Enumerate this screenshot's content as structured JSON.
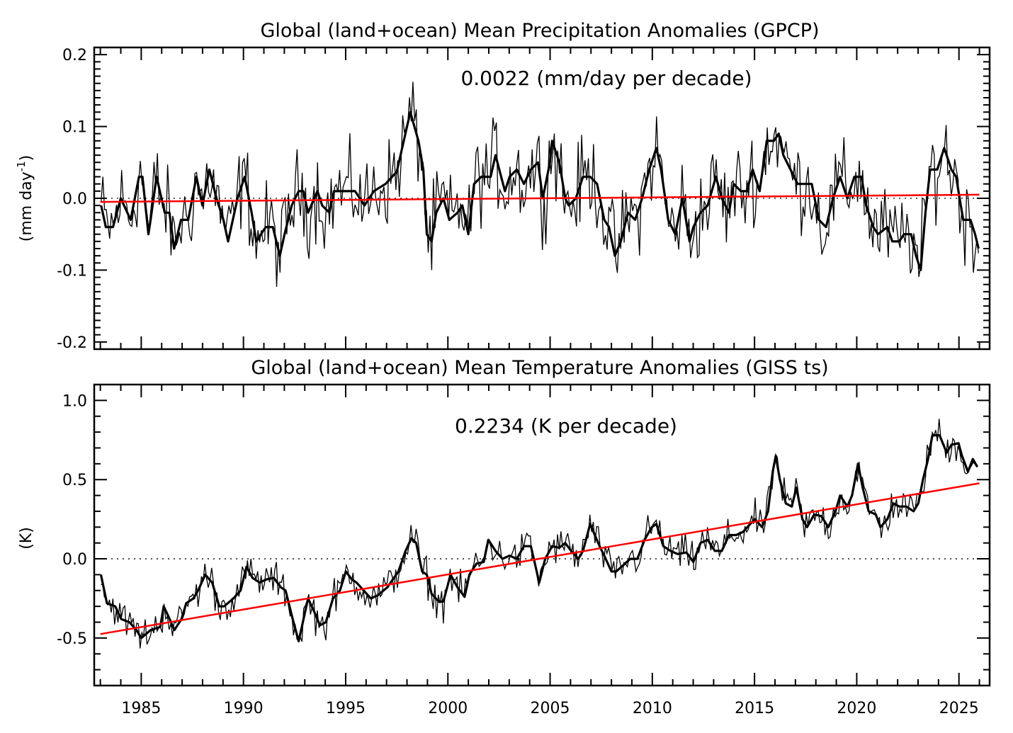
{
  "chart_data": [
    {
      "type": "line",
      "title": "Global (land+ocean) Mean Precipitation Anomalies (GPCP)",
      "annotation": "0.0022 (mm/day per decade)",
      "xlabel": "",
      "ylabel": "(mm day",
      "ylabel_sup": "-1",
      "ylabel_close": ")",
      "xlim": [
        1982.7,
        2026.5
      ],
      "ylim": [
        -0.21,
        0.21
      ],
      "yticks": [
        -0.2,
        -0.1,
        0.0,
        0.1,
        0.2
      ],
      "ytick_labels": [
        "-0.2",
        "-0.1",
        "0.0",
        "0.1",
        "0.2"
      ],
      "zero_line": "dotted",
      "colors": {
        "series": "#000000",
        "trend": "#ff0000"
      },
      "trend": {
        "slope_per_decade": 0.0022,
        "start": [
          1983.0,
          -0.005
        ],
        "end": [
          2026.0,
          0.005
        ]
      },
      "series": {
        "x": [
          1983.04,
          1983.27,
          1983.62,
          1984.0,
          1984.48,
          1984.89,
          1985.06,
          1985.35,
          1985.46,
          1985.75,
          1986.15,
          1986.38,
          1986.61,
          1986.95,
          1987.3,
          1987.7,
          1987.99,
          1988.33,
          1988.68,
          1989.02,
          1989.25,
          1989.71,
          1990.06,
          1990.4,
          1990.63,
          1991.09,
          1991.44,
          1991.78,
          1992.01,
          1992.36,
          1992.7,
          1992.93,
          1993.16,
          1993.62,
          1993.85,
          1994.2,
          1994.43,
          1995.0,
          1995.46,
          1995.92,
          1996.38,
          1996.95,
          1997.5,
          1998.16,
          1998.56,
          1998.8,
          1998.97,
          1999.2,
          1999.43,
          1999.78,
          2000.07,
          2000.47,
          2000.71,
          2001.0,
          2001.28,
          2001.63,
          2002.09,
          2002.33,
          2002.79,
          2003.02,
          2003.37,
          2003.72,
          2004.06,
          2004.41,
          2004.64,
          2004.99,
          2005.1,
          2005.45,
          2005.74,
          2005.91,
          2006.26,
          2006.61,
          2006.96,
          2007.3,
          2007.65,
          2007.88,
          2008.17,
          2008.46,
          2008.81,
          2009.16,
          2009.5,
          2009.85,
          2010.2,
          2010.43,
          2010.78,
          2011.12,
          2011.47,
          2011.82,
          2012.01,
          2012.36,
          2012.71,
          2013.11,
          2013.4,
          2013.75,
          2013.98,
          2014.33,
          2014.62,
          2014.91,
          2015.25,
          2015.6,
          2015.95,
          2016.18,
          2016.41,
          2016.76,
          2017.11,
          2017.45,
          2017.8,
          2018.15,
          2018.5,
          2018.84,
          2019.19,
          2019.54,
          2019.88,
          2020.23,
          2020.46,
          2020.81,
          2021.04,
          2021.5,
          2021.74,
          2022.08,
          2022.31,
          2022.66,
          2022.9,
          2023.13,
          2023.36,
          2023.59,
          2023.94,
          2024.28,
          2024.63,
          2024.86,
          2025.09,
          2025.21,
          2025.56,
          2025.79,
          2025.96
        ],
        "y": [
          -0.01,
          -0.04,
          -0.04,
          0.0,
          -0.03,
          0.03,
          0.03,
          -0.05,
          -0.03,
          0.03,
          -0.02,
          -0.02,
          -0.07,
          -0.03,
          -0.03,
          0.03,
          -0.01,
          0.04,
          0.0,
          -0.03,
          -0.06,
          0.0,
          0.03,
          -0.02,
          -0.06,
          -0.04,
          -0.04,
          -0.08,
          -0.05,
          -0.01,
          0.01,
          0.01,
          -0.02,
          0.01,
          -0.01,
          -0.02,
          0.01,
          0.01,
          0.01,
          -0.01,
          0.01,
          0.02,
          0.037,
          0.12,
          0.08,
          0.04,
          -0.05,
          -0.06,
          -0.02,
          0.0,
          -0.03,
          -0.02,
          -0.01,
          -0.05,
          0.02,
          0.03,
          0.03,
          0.06,
          0.01,
          0.03,
          0.04,
          0.02,
          0.04,
          0.05,
          0.0,
          0.05,
          0.08,
          0.05,
          0.0,
          -0.01,
          0.0,
          0.03,
          0.03,
          0.02,
          -0.03,
          -0.04,
          -0.08,
          -0.06,
          -0.02,
          -0.03,
          0.0,
          0.04,
          0.07,
          0.04,
          -0.03,
          -0.05,
          0.0,
          -0.06,
          -0.04,
          -0.02,
          -0.01,
          0.03,
          0.0,
          -0.02,
          0.02,
          0.01,
          0.01,
          0.04,
          0.01,
          0.08,
          0.08,
          0.09,
          0.06,
          0.04,
          0.02,
          0.02,
          0.02,
          -0.03,
          -0.04,
          0.0,
          0.03,
          0.0,
          0.03,
          0.03,
          -0.01,
          -0.04,
          -0.05,
          -0.04,
          -0.06,
          -0.06,
          -0.05,
          -0.05,
          -0.08,
          -0.1,
          -0.02,
          0.04,
          0.04,
          0.07,
          0.04,
          0.03,
          -0.01,
          -0.03,
          -0.03,
          -0.05,
          -0.07
        ]
      }
    },
    {
      "type": "line",
      "title": "Global (land+ocean) Mean Temperature Anomalies (GISS ts)",
      "annotation": "0.2234 (K per decade)",
      "xlabel": "",
      "ylabel": "(K)",
      "xlim": [
        1982.7,
        2026.5
      ],
      "ylim": [
        -0.8,
        1.1
      ],
      "yticks": [
        -0.5,
        0.0,
        0.5,
        1.0
      ],
      "ytick_labels": [
        "-0.5",
        "0.0",
        "0.5",
        "1.0"
      ],
      "xticks": [
        1985,
        1990,
        1995,
        2000,
        2005,
        2010,
        2015,
        2020,
        2025
      ],
      "xtick_labels": [
        "1985",
        "1990",
        "1995",
        "2000",
        "2005",
        "2010",
        "2015",
        "2020",
        "2025"
      ],
      "zero_line": "dotted",
      "colors": {
        "series": "#000000",
        "trend": "#ff0000"
      },
      "trend": {
        "slope_per_decade": 0.2234,
        "start": [
          1983.0,
          -0.475
        ],
        "end": [
          2026.0,
          0.477
        ]
      },
      "series": {
        "x": [
          1983.03,
          1983.32,
          1983.73,
          1984.02,
          1984.42,
          1984.77,
          1985.0,
          1985.46,
          1985.93,
          1986.1,
          1986.39,
          1986.62,
          1986.97,
          1987.2,
          1987.55,
          1987.78,
          1988.13,
          1988.47,
          1988.82,
          1989.05,
          1989.51,
          1989.86,
          1990.15,
          1990.44,
          1990.79,
          1991.13,
          1991.48,
          1991.83,
          1992.06,
          1992.41,
          1992.7,
          1992.99,
          1993.16,
          1993.45,
          1993.74,
          1994.03,
          1994.38,
          1994.72,
          1995.01,
          1995.3,
          1995.53,
          1995.88,
          1996.23,
          1996.57,
          1997.04,
          1997.58,
          1997.93,
          1998.22,
          1998.45,
          1998.74,
          1998.97,
          1999.2,
          1999.55,
          1999.78,
          2000.13,
          2000.47,
          2000.82,
          2001.05,
          2001.4,
          2001.75,
          2001.98,
          2002.33,
          2002.67,
          2003.02,
          2003.37,
          2003.72,
          2004.06,
          2004.29,
          2004.47,
          2004.76,
          2005.1,
          2005.45,
          2005.74,
          2006.03,
          2006.38,
          2006.61,
          2006.96,
          2007.19,
          2007.42,
          2007.65,
          2008.0,
          2008.23,
          2008.58,
          2008.92,
          2009.27,
          2009.62,
          2009.97,
          2010.2,
          2010.54,
          2010.89,
          2011.24,
          2011.67,
          2012.01,
          2012.36,
          2012.71,
          2013.06,
          2013.4,
          2013.75,
          2014.1,
          2014.44,
          2014.79,
          2015.02,
          2015.37,
          2015.66,
          2015.89,
          2016.04,
          2016.24,
          2016.53,
          2016.82,
          2017.05,
          2017.34,
          2017.57,
          2017.92,
          2018.26,
          2018.61,
          2018.96,
          2019.19,
          2019.54,
          2019.77,
          2020.06,
          2020.29,
          2020.58,
          2020.93,
          2021.16,
          2021.5,
          2021.79,
          2022.08,
          2022.43,
          2022.78,
          2023.01,
          2023.24,
          2023.47,
          2023.7,
          2024.05,
          2024.4,
          2024.63,
          2024.98,
          2025.15,
          2025.44,
          2025.68,
          2025.9
        ],
        "y": [
          -0.1,
          -0.28,
          -0.3,
          -0.38,
          -0.4,
          -0.45,
          -0.5,
          -0.45,
          -0.43,
          -0.3,
          -0.38,
          -0.45,
          -0.38,
          -0.28,
          -0.25,
          -0.2,
          -0.1,
          -0.15,
          -0.3,
          -0.3,
          -0.25,
          -0.2,
          -0.05,
          -0.12,
          -0.15,
          -0.13,
          -0.12,
          -0.18,
          -0.2,
          -0.38,
          -0.52,
          -0.35,
          -0.25,
          -0.33,
          -0.42,
          -0.4,
          -0.25,
          -0.2,
          -0.08,
          -0.13,
          -0.15,
          -0.2,
          -0.25,
          -0.23,
          -0.18,
          -0.08,
          0.05,
          0.13,
          0.1,
          -0.08,
          -0.1,
          -0.22,
          -0.27,
          -0.27,
          -0.1,
          -0.18,
          -0.24,
          -0.1,
          -0.03,
          -0.02,
          0.12,
          0.05,
          0.0,
          0.02,
          0.0,
          0.08,
          0.08,
          -0.05,
          -0.15,
          0.0,
          0.08,
          0.07,
          0.1,
          0.05,
          0.0,
          0.05,
          0.22,
          0.15,
          0.08,
          0.02,
          -0.08,
          -0.08,
          -0.04,
          0.0,
          0.0,
          0.12,
          0.2,
          0.22,
          0.08,
          0.05,
          0.03,
          0.04,
          -0.02,
          0.1,
          0.12,
          0.05,
          0.05,
          0.15,
          0.15,
          0.17,
          0.22,
          0.25,
          0.2,
          0.3,
          0.55,
          0.65,
          0.5,
          0.35,
          0.33,
          0.45,
          0.25,
          0.2,
          0.28,
          0.27,
          0.2,
          0.3,
          0.4,
          0.33,
          0.4,
          0.6,
          0.45,
          0.3,
          0.28,
          0.2,
          0.25,
          0.35,
          0.33,
          0.33,
          0.3,
          0.35,
          0.5,
          0.62,
          0.78,
          0.78,
          0.67,
          0.72,
          0.73,
          0.65,
          0.55,
          0.63,
          0.58
        ]
      }
    }
  ]
}
